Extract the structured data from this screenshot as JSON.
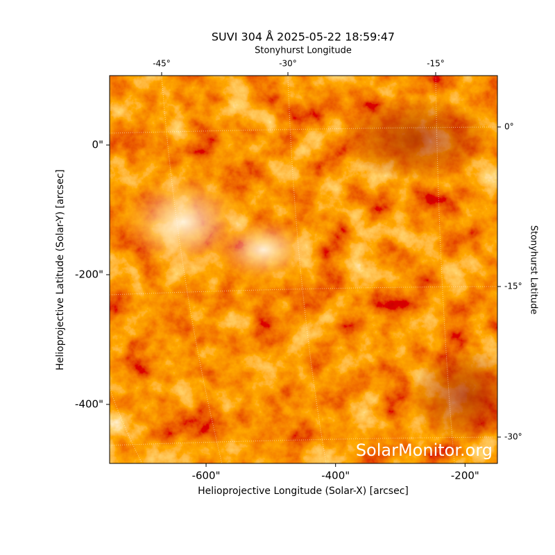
{
  "chart_data": {
    "type": "image",
    "title": "SUVI 304 Å 2025-05-22 18:59:47",
    "xlabel": "Helioprojective Longitude (Solar-X) [arcsec]",
    "ylabel": "Helioprojective Latitude (Solar-Y) [arcsec]",
    "x2label": "Stonyhurst Longitude",
    "y2label": "Stonyhurst Latitude",
    "annotation": "SolarMonitor.org",
    "xlim": [
      -749,
      -150
    ],
    "ylim": [
      -491,
      107
    ],
    "xticks": [
      {
        "value": -600,
        "label": "-600\""
      },
      {
        "value": -400,
        "label": "-400\""
      },
      {
        "value": -200,
        "label": "-200\""
      }
    ],
    "yticks": [
      {
        "value": 0,
        "label": "0\""
      },
      {
        "value": -200,
        "label": "-200\""
      },
      {
        "value": -400,
        "label": "-400\""
      }
    ],
    "x2ticks": [
      {
        "value": -45,
        "label": "-45°"
      },
      {
        "value": -30,
        "label": "-30°"
      },
      {
        "value": -15,
        "label": "-15°"
      }
    ],
    "y2ticks": [
      {
        "value": 0,
        "label": "0°"
      },
      {
        "value": -15,
        "label": "-15°"
      },
      {
        "value": -30,
        "label": "-30°"
      }
    ]
  }
}
